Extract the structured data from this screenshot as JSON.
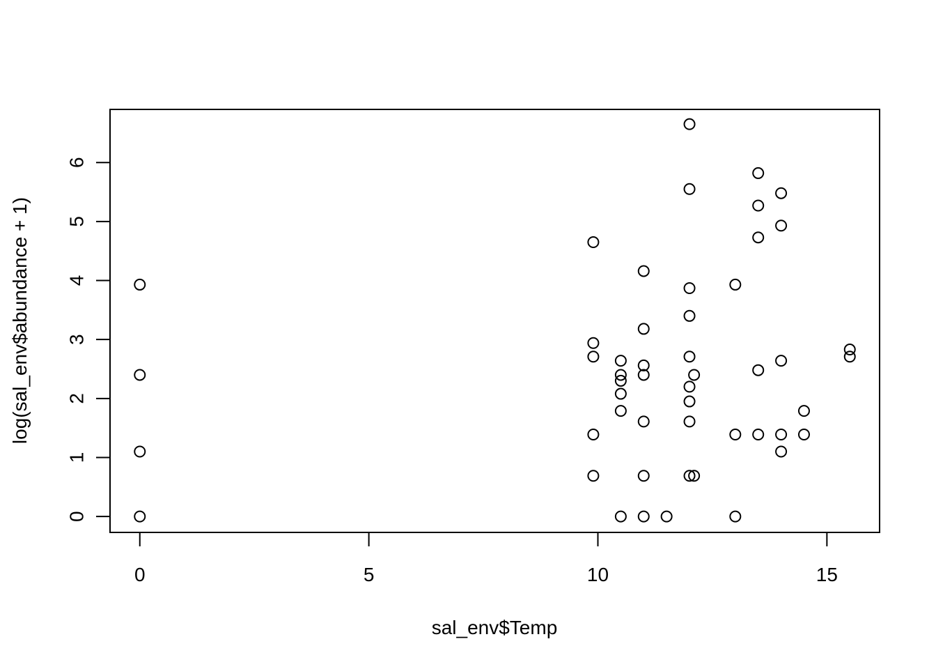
{
  "chart_data": {
    "type": "scatter",
    "title": "",
    "xlabel": "sal_env$Temp",
    "ylabel": "log(sal_env$abundance + 1)",
    "xlim": [
      -0.65,
      16.15
    ],
    "ylim": [
      -0.27,
      6.9
    ],
    "xticks": [
      0,
      5,
      10,
      15
    ],
    "yticks": [
      0,
      1,
      2,
      3,
      4,
      5,
      6
    ],
    "grid": false,
    "legend": "none",
    "marker": "open-circle",
    "colors": {
      "point": "#000000",
      "axis": "#000000",
      "background": "#ffffff"
    },
    "points": [
      [
        0,
        3.93
      ],
      [
        0,
        2.4
      ],
      [
        0,
        1.1
      ],
      [
        0,
        0
      ],
      [
        9.9,
        4.65
      ],
      [
        9.9,
        2.94
      ],
      [
        9.9,
        2.71
      ],
      [
        9.9,
        1.39
      ],
      [
        9.9,
        0.69
      ],
      [
        10.5,
        2.64
      ],
      [
        10.5,
        2.4
      ],
      [
        10.5,
        2.3
      ],
      [
        10.5,
        2.08
      ],
      [
        10.5,
        1.79
      ],
      [
        10.5,
        0
      ],
      [
        11,
        4.16
      ],
      [
        11,
        3.18
      ],
      [
        11,
        2.56
      ],
      [
        11,
        2.4
      ],
      [
        11,
        1.61
      ],
      [
        11,
        0.69
      ],
      [
        11,
        0
      ],
      [
        11.5,
        0
      ],
      [
        12,
        6.65
      ],
      [
        12,
        5.55
      ],
      [
        12,
        3.87
      ],
      [
        12,
        3.4
      ],
      [
        12,
        2.71
      ],
      [
        12,
        2.2
      ],
      [
        12,
        1.95
      ],
      [
        12,
        1.61
      ],
      [
        12,
        0.69
      ],
      [
        12.1,
        2.4
      ],
      [
        12.1,
        0.69
      ],
      [
        13,
        3.93
      ],
      [
        13,
        1.39
      ],
      [
        13,
        0
      ],
      [
        13.5,
        5.82
      ],
      [
        13.5,
        5.27
      ],
      [
        13.5,
        4.73
      ],
      [
        13.5,
        2.48
      ],
      [
        13.5,
        1.39
      ],
      [
        14,
        5.48
      ],
      [
        14,
        4.93
      ],
      [
        14,
        2.64
      ],
      [
        14,
        1.39
      ],
      [
        14,
        1.1
      ],
      [
        14.5,
        1.79
      ],
      [
        14.5,
        1.39
      ],
      [
        15.5,
        2.83
      ],
      [
        15.5,
        2.71
      ]
    ]
  }
}
